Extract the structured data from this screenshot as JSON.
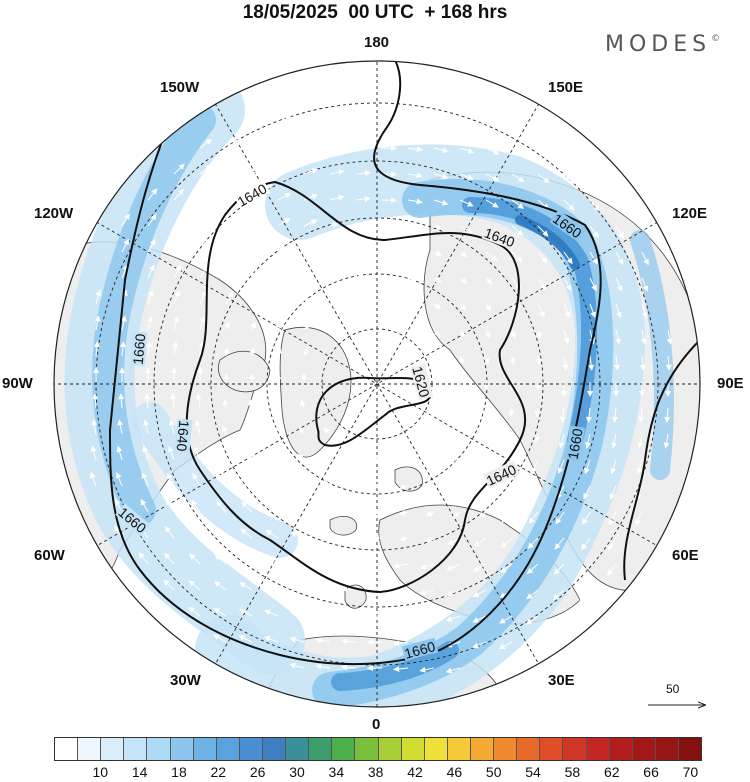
{
  "header": {
    "title": "18/05/2025  00 UTC  + 168 hrs",
    "brand": "MODES",
    "brand_mark": "©"
  },
  "map": {
    "projection": "north polar stereographic",
    "longitude_labels": {
      "top": "180",
      "bottom": "0",
      "left": "90W",
      "right": "90E",
      "upper_left_1": "150W",
      "upper_left_2": "120W",
      "lower_left_1": "60W",
      "lower_left_2": "30W",
      "upper_right_1": "150E",
      "upper_right_2": "120E",
      "lower_right_1": "60E",
      "lower_right_2": "30E"
    },
    "contour_labels": [
      "1620",
      "1640",
      "1640",
      "1640",
      "1640",
      "1660",
      "1660",
      "1660",
      "1660"
    ],
    "colors": {
      "land": "#eeeeee",
      "ocean": "#ffffff",
      "jet_light": "#c6e4f7",
      "jet_mid": "#8cc6ee",
      "jet_strong": "#4a98d8",
      "jet_core": "#2b78c0"
    }
  },
  "reference_vector": {
    "value": "50"
  },
  "colorbar": {
    "labels": [
      "10",
      "14",
      "18",
      "22",
      "26",
      "30",
      "34",
      "38",
      "42",
      "46",
      "50",
      "54",
      "58",
      "62",
      "66",
      "70"
    ],
    "colors": [
      "#ffffff",
      "#eef7fd",
      "#daeefa",
      "#c6e4f7",
      "#addaf4",
      "#8cc6ee",
      "#6fb3e6",
      "#5aa2de",
      "#4a8fd2",
      "#3e7fc4",
      "#3a8f98",
      "#3d9e6c",
      "#4caf4b",
      "#7cbf3c",
      "#a8cf38",
      "#d2dd33",
      "#f0e03a",
      "#f6c938",
      "#f4aa33",
      "#ef8a2f",
      "#e86a2b",
      "#e04e29",
      "#d23426",
      "#c42525",
      "#b41d1d",
      "#a51818",
      "#951414",
      "#851010"
    ]
  }
}
